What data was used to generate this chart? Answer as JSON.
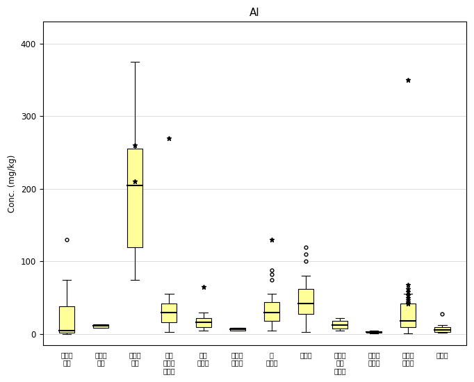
{
  "title": "Al",
  "ylabel": "Conc. (mg/kg)",
  "categories": [
    "코코아\n매스",
    "코코아\n버터",
    "코코아\n분말",
    "기타\n코코아\n가공품",
    "밀크\n초콜릿",
    "스위트\n초콜릿",
    "준\n초콜릿",
    "초콜릿",
    "패밀리\n밀크\n초콜릿",
    "화이트\n초콜릿",
    "초콜릿\n가공품",
    "가공유"
  ],
  "box_data": [
    {
      "q1": 2,
      "median": 5,
      "q3": 38,
      "whislo": 0.3,
      "whishi": 75,
      "fliers_circle": [
        130
      ],
      "fliers_star": []
    },
    {
      "q1": 9,
      "median": 11,
      "q3": 13,
      "whislo": 9,
      "whishi": 13,
      "fliers_circle": [],
      "fliers_star": []
    },
    {
      "q1": 120,
      "median": 205,
      "q3": 255,
      "whislo": 75,
      "whishi": 375,
      "fliers_circle": [],
      "fliers_star": [
        260,
        210
      ]
    },
    {
      "q1": 16,
      "median": 30,
      "q3": 42,
      "whislo": 3,
      "whishi": 55,
      "fliers_circle": [],
      "fliers_star": [
        270
      ]
    },
    {
      "q1": 10,
      "median": 16,
      "q3": 22,
      "whislo": 5,
      "whishi": 30,
      "fliers_circle": [],
      "fliers_star": [
        65
      ]
    },
    {
      "q1": 5,
      "median": 7,
      "q3": 9,
      "whislo": 5,
      "whishi": 9,
      "fliers_circle": [],
      "fliers_star": []
    },
    {
      "q1": 18,
      "median": 30,
      "q3": 44,
      "whislo": 5,
      "whishi": 55,
      "fliers_circle": [
        75,
        82,
        88
      ],
      "fliers_star": [
        130
      ]
    },
    {
      "q1": 28,
      "median": 42,
      "q3": 62,
      "whislo": 3,
      "whishi": 80,
      "fliers_circle": [
        100,
        110,
        120
      ],
      "fliers_star": []
    },
    {
      "q1": 8,
      "median": 12,
      "q3": 18,
      "whislo": 5,
      "whishi": 22,
      "fliers_circle": [],
      "fliers_star": []
    },
    {
      "q1": 2,
      "median": 3,
      "q3": 4,
      "whislo": 1,
      "whishi": 5,
      "fliers_circle": [],
      "fliers_star": []
    },
    {
      "q1": 10,
      "median": 18,
      "q3": 42,
      "whislo": 0.5,
      "whishi": 55,
      "fliers_circle": [],
      "fliers_star": [
        350,
        68,
        62,
        58,
        54,
        50,
        47,
        44,
        42
      ]
    },
    {
      "q1": 3,
      "median": 6,
      "q3": 10,
      "whislo": 2,
      "whishi": 12,
      "fliers_circle": [
        28
      ],
      "fliers_star": []
    }
  ],
  "ylim": [
    -15,
    430
  ],
  "yticks": [
    0,
    100,
    200,
    300,
    400
  ],
  "box_color": "#ffff99",
  "box_edgecolor": "#000000",
  "median_color": "#000000",
  "whisker_color": "#000000",
  "cap_color": "#000000",
  "bg_color": "#ffffff",
  "plot_bg_color": "#ffffff",
  "fig_width": 6.82,
  "fig_height": 5.5
}
